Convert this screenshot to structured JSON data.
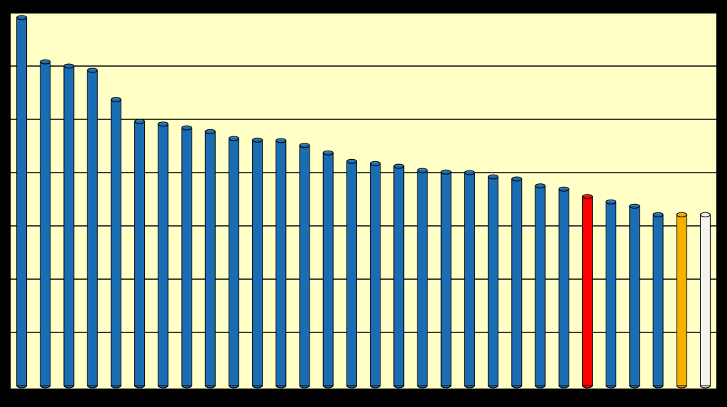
{
  "chart_data": {
    "type": "bar",
    "categories": [
      null,
      null,
      null,
      null,
      null,
      null,
      null,
      null,
      null,
      null,
      null,
      null,
      null,
      null,
      null,
      null,
      null,
      null,
      null,
      null,
      null,
      null,
      null,
      null,
      null,
      null,
      null,
      null,
      null,
      null
    ],
    "values": [
      6.91,
      6.08,
      6.0,
      5.92,
      5.37,
      4.96,
      4.91,
      4.84,
      4.77,
      4.64,
      4.61,
      4.6,
      4.51,
      4.37,
      4.21,
      4.17,
      4.12,
      4.04,
      4.01,
      4.0,
      3.92,
      3.88,
      3.75,
      3.69,
      3.55,
      3.45,
      3.37,
      3.21,
      3.21,
      3.21
    ],
    "colors": [
      "#1b6db3",
      "#1b6db3",
      "#1b6db3",
      "#1b6db3",
      "#1b6db3",
      "#1b6db3",
      "#1b6db3",
      "#1b6db3",
      "#1b6db3",
      "#1b6db3",
      "#1b6db3",
      "#1b6db3",
      "#1b6db3",
      "#1b6db3",
      "#1b6db3",
      "#1b6db3",
      "#1b6db3",
      "#1b6db3",
      "#1b6db3",
      "#1b6db3",
      "#1b6db3",
      "#1b6db3",
      "#1b6db3",
      "#1b6db3",
      "#ff0000",
      "#1b6db3",
      "#1b6db3",
      "#1b6db3",
      "#f5b000",
      "#f4f4ef"
    ],
    "ylim": [
      0,
      7
    ],
    "yticks": [
      1,
      2,
      3,
      4,
      5,
      6
    ],
    "grid": true
  }
}
